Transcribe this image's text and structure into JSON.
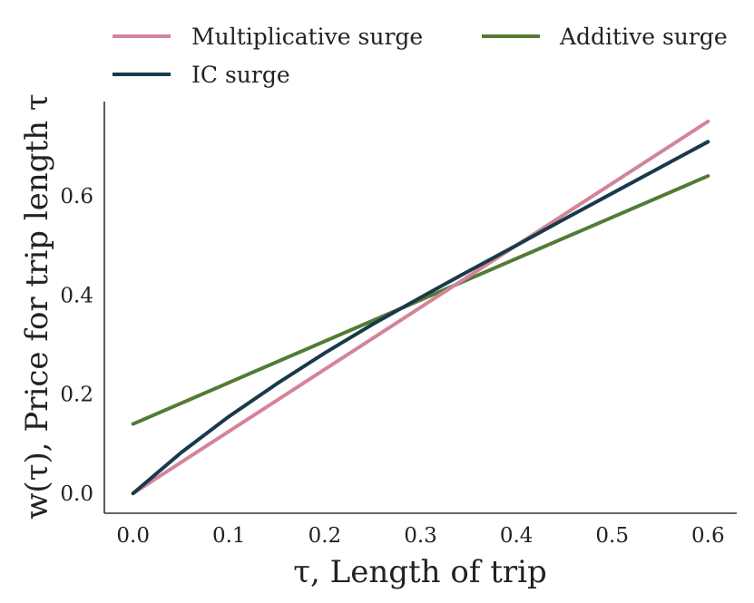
{
  "chart_data": {
    "type": "line",
    "title": "",
    "xlabel": "τ, Length of trip",
    "ylabel": "w(τ), Price for trip length τ",
    "xlim": [
      -0.03,
      0.63
    ],
    "ylim": [
      -0.04,
      0.79
    ],
    "xticks": [
      0.0,
      0.1,
      0.2,
      0.3,
      0.4,
      0.5,
      0.6
    ],
    "xtick_labels": [
      "0.0",
      "0.1",
      "0.2",
      "0.3",
      "0.4",
      "0.5",
      "0.6"
    ],
    "yticks": [
      0.0,
      0.2,
      0.4,
      0.6
    ],
    "ytick_labels": [
      "0.0",
      "0.2",
      "0.4",
      "0.6"
    ],
    "grid": false,
    "legend_position": "top",
    "series": [
      {
        "name": "Multiplicative surge",
        "color": "#d4849a",
        "x": [
          0.0,
          0.6
        ],
        "y": [
          0.0,
          0.75
        ]
      },
      {
        "name": "Additive surge",
        "color": "#527b35",
        "x": [
          0.0,
          0.6
        ],
        "y": [
          0.14,
          0.64
        ]
      },
      {
        "name": "IC surge",
        "color": "#183a4b",
        "x": [
          0.0,
          0.05,
          0.1,
          0.15,
          0.2,
          0.25,
          0.3,
          0.35,
          0.4,
          0.45,
          0.5,
          0.55,
          0.6
        ],
        "y": [
          0.0,
          0.082,
          0.155,
          0.221,
          0.283,
          0.341,
          0.395,
          0.448,
          0.5,
          0.553,
          0.605,
          0.657,
          0.709
        ]
      }
    ]
  }
}
